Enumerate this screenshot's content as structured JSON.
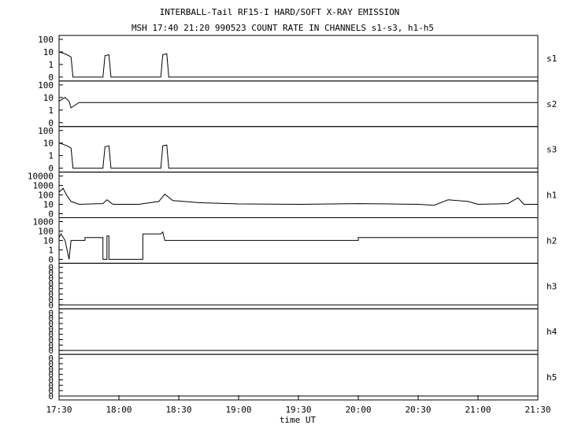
{
  "title": "INTERBALL-Tail RF15-I HARD/SOFT X-RAY EMISSION",
  "subtitle": "MSH 17:40 21:20 990523  COUNT RATE IN CHANNELS s1-s3, h1-h5",
  "chart_data": {
    "type": "line",
    "xlabel": "time UT",
    "x_ticks": [
      "17:30",
      "18:00",
      "18:30",
      "19:00",
      "19:30",
      "20:00",
      "20:30",
      "21:00",
      "21:30"
    ],
    "x_range": [
      "17:30",
      "21:30"
    ],
    "y_scale": "log",
    "grid": false,
    "panels": [
      {
        "name": "s1",
        "yticks": [
          "100",
          "10",
          "1",
          "0"
        ],
        "series": [
          {
            "values": [
              [
                "17:30",
                10
              ],
              [
                "17:32",
                8
              ],
              [
                "17:34",
                6
              ],
              [
                "17:36",
                4
              ],
              [
                "17:37",
                0
              ],
              [
                "17:52",
                0
              ],
              [
                "17:53",
                5
              ],
              [
                "17:55",
                6
              ],
              [
                "17:56",
                0
              ],
              [
                "18:21",
                0
              ],
              [
                "18:22",
                6
              ],
              [
                "18:24",
                7
              ],
              [
                "18:25",
                0
              ],
              [
                "21:30",
                0
              ]
            ]
          }
        ]
      },
      {
        "name": "s2",
        "yticks": [
          "100",
          "10",
          "1",
          "0"
        ],
        "series": [
          {
            "values": [
              [
                "17:30",
                5
              ],
              [
                "17:33",
                10
              ],
              [
                "17:35",
                5
              ],
              [
                "17:36",
                1.5
              ],
              [
                "17:40",
                4
              ],
              [
                "18:00",
                4
              ],
              [
                "18:30",
                4
              ],
              [
                "19:00",
                4
              ],
              [
                "19:30",
                4
              ],
              [
                "20:00",
                4
              ],
              [
                "20:30",
                4
              ],
              [
                "21:00",
                4
              ],
              [
                "21:30",
                4
              ]
            ]
          }
        ]
      },
      {
        "name": "s3",
        "yticks": [
          "100",
          "10",
          "1",
          "0"
        ],
        "series": [
          {
            "values": [
              [
                "17:30",
                10
              ],
              [
                "17:32",
                8
              ],
              [
                "17:34",
                6
              ],
              [
                "17:36",
                4
              ],
              [
                "17:37",
                0
              ],
              [
                "17:52",
                0
              ],
              [
                "17:53",
                5
              ],
              [
                "17:55",
                6
              ],
              [
                "17:56",
                0
              ],
              [
                "18:21",
                0
              ],
              [
                "18:22",
                6
              ],
              [
                "18:24",
                7
              ],
              [
                "18:25",
                0
              ],
              [
                "21:30",
                0
              ]
            ]
          }
        ]
      },
      {
        "name": "h1",
        "yticks": [
          "10000",
          "1000",
          "100",
          "10",
          "0"
        ],
        "series": [
          {
            "values": [
              [
                "17:30",
                200
              ],
              [
                "17:32",
                500
              ],
              [
                "17:34",
                80
              ],
              [
                "17:36",
                20
              ],
              [
                "17:40",
                10
              ],
              [
                "17:52",
                12
              ],
              [
                "17:54",
                30
              ],
              [
                "17:57",
                10
              ],
              [
                "18:10",
                10
              ],
              [
                "18:20",
                20
              ],
              [
                "18:23",
                120
              ],
              [
                "18:27",
                25
              ],
              [
                "18:40",
                15
              ],
              [
                "19:00",
                11
              ],
              [
                "19:30",
                10
              ],
              [
                "20:00",
                12
              ],
              [
                "20:15",
                11
              ],
              [
                "20:30",
                10
              ],
              [
                "20:38",
                8
              ],
              [
                "20:45",
                30
              ],
              [
                "20:55",
                20
              ],
              [
                "21:00",
                10
              ],
              [
                "21:15",
                12
              ],
              [
                "21:20",
                50
              ],
              [
                "21:23",
                10
              ],
              [
                "21:30",
                10
              ]
            ]
          }
        ]
      },
      {
        "name": "h2",
        "yticks": [
          "1000",
          "100",
          "10",
          "1",
          "0"
        ],
        "series": [
          {
            "values": [
              [
                "17:30",
                20
              ],
              [
                "17:31",
                50
              ],
              [
                "17:33",
                10
              ],
              [
                "17:35",
                0
              ],
              [
                "17:36",
                10
              ],
              [
                "17:43",
                10
              ],
              [
                "17:43",
                20
              ],
              [
                "17:52",
                20
              ],
              [
                "17:52",
                0
              ],
              [
                "17:54",
                0
              ],
              [
                "17:54",
                30
              ],
              [
                "17:55",
                30
              ],
              [
                "17:55",
                0
              ],
              [
                "18:12",
                0
              ],
              [
                "18:12",
                50
              ],
              [
                "18:21",
                50
              ],
              [
                "18:22",
                80
              ],
              [
                "18:23",
                10
              ],
              [
                "20:00",
                10
              ],
              [
                "20:00",
                20
              ],
              [
                "21:30",
                20
              ]
            ]
          }
        ]
      },
      {
        "name": "h3",
        "yticks": [
          "0",
          "0",
          "0",
          "0",
          "0",
          "0",
          "0",
          "0"
        ],
        "series": [
          {
            "values": [
              [
                "17:30",
                0
              ],
              [
                "21:30",
                0
              ]
            ]
          }
        ]
      },
      {
        "name": "h4",
        "yticks": [
          "0",
          "0",
          "0",
          "0",
          "0",
          "0",
          "0",
          "0"
        ],
        "series": [
          {
            "values": [
              [
                "17:30",
                0
              ],
              [
                "21:30",
                0
              ]
            ]
          }
        ]
      },
      {
        "name": "h5",
        "yticks": [
          "0",
          "0",
          "0",
          "0",
          "0",
          "0",
          "0",
          "0"
        ],
        "series": [
          {
            "values": [
              [
                "17:30",
                0
              ],
              [
                "21:30",
                0
              ]
            ]
          }
        ]
      }
    ]
  }
}
